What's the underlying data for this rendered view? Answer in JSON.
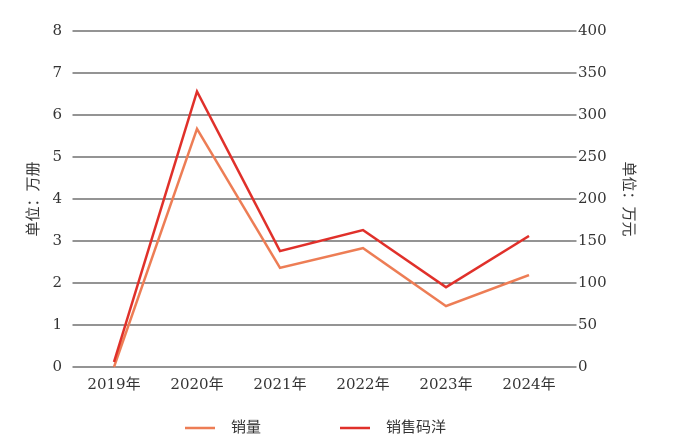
{
  "chart_data": {
    "type": "line",
    "categories": [
      "2019年",
      "2020年",
      "2021年",
      "2022年",
      "2023年",
      "2024年"
    ],
    "series": [
      {
        "name": "销量",
        "color": "#ed7d55",
        "values": [
          0,
          5.67,
          2.36,
          2.83,
          1.45,
          2.19
        ]
      },
      {
        "name": "销售码洋",
        "color": "#e0302a",
        "axis": "y2",
        "values": [
          6,
          328,
          138,
          163,
          95,
          156
        ]
      }
    ],
    "ylabel": "单位：万册",
    "y2label": "单位：万元",
    "ylim": [
      0,
      8
    ],
    "yticks": [
      0,
      1,
      2,
      3,
      4,
      5,
      6,
      7,
      8
    ],
    "y2lim": [
      0,
      400
    ],
    "y2ticks": [
      0,
      50,
      100,
      150,
      200,
      250,
      300,
      350,
      400
    ],
    "grid": true,
    "legend": "bottom"
  }
}
